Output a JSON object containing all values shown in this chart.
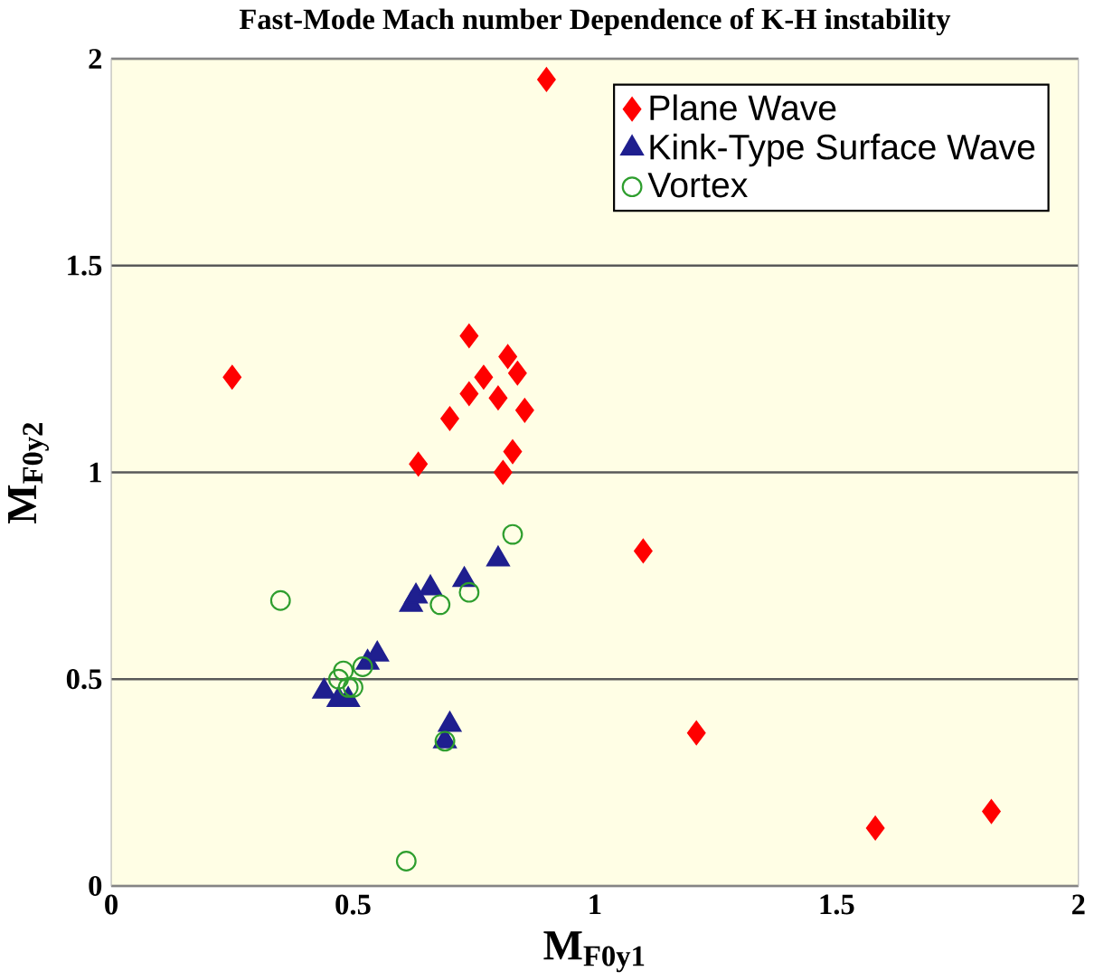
{
  "chart_data": {
    "type": "scatter",
    "title": "Fast-Mode Mach number Dependence of K-H instability",
    "xlabel": "M$_{F0y1}$",
    "ylabel": "M$_{F0y2}$",
    "xlim": [
      0,
      2
    ],
    "ylim": [
      0,
      2
    ],
    "xticks": [
      0,
      0.5,
      1,
      1.5,
      2
    ],
    "yticks": [
      0,
      0.5,
      1,
      1.5,
      2
    ],
    "grid": "y",
    "legend": "top right",
    "series": [
      {
        "name": "Plane Wave",
        "color": "#ff0000",
        "marker": "diamond",
        "x": [
          0.25,
          0.9,
          0.74,
          0.82,
          0.84,
          0.77,
          0.74,
          0.8,
          0.855,
          0.7,
          0.83,
          0.635,
          0.81,
          1.1,
          1.21,
          1.58,
          1.82
        ],
        "values": [
          1.23,
          1.95,
          1.33,
          1.28,
          1.24,
          1.23,
          1.19,
          1.18,
          1.15,
          1.13,
          1.05,
          1.02,
          1.0,
          0.81,
          0.37,
          0.14,
          0.18
        ]
      },
      {
        "name": "Kink-Type Surface Wave",
        "color": "#1f1f8f",
        "marker": "triangle",
        "x": [
          0.44,
          0.47,
          0.49,
          0.53,
          0.55,
          0.62,
          0.63,
          0.66,
          0.73,
          0.8,
          0.69,
          0.7
        ],
        "values": [
          0.47,
          0.45,
          0.45,
          0.54,
          0.56,
          0.68,
          0.7,
          0.72,
          0.74,
          0.79,
          0.35,
          0.39
        ]
      },
      {
        "name": "Vortex",
        "color": "#2e9e2e",
        "marker": "circle",
        "x": [
          0.35,
          0.47,
          0.48,
          0.5,
          0.52,
          0.68,
          0.74,
          0.83,
          0.69,
          0.61,
          0.49
        ],
        "values": [
          0.69,
          0.5,
          0.52,
          0.48,
          0.53,
          0.68,
          0.71,
          0.85,
          0.35,
          0.06,
          0.48
        ]
      }
    ]
  }
}
